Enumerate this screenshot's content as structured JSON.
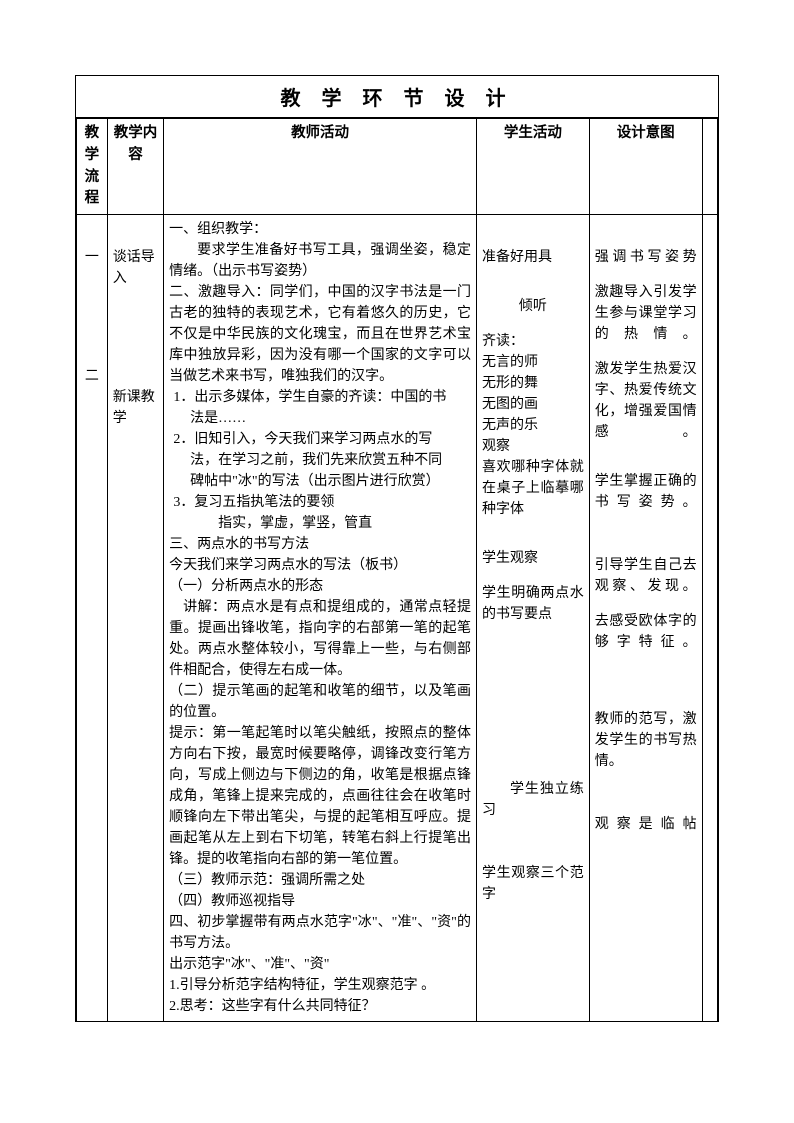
{
  "title": "教 学 环 节 设 计",
  "headers": {
    "flow": "教学流程",
    "content": "教学内容",
    "teacher": "教师活动",
    "student": "学生活动",
    "intent": "设计意图"
  },
  "rows": {
    "flow1": "一",
    "flow2": "二",
    "content1": "谈话导入",
    "content2": "新课教学",
    "teacher": {
      "t1": "一、组织教学：",
      "t2": "要求学生准备好书写工具，强调坐姿，稳定情绪。（出示书写姿势）",
      "t3": "二、激趣导入：同学们，中国的汉字书法是一门古老的独特的表现艺术，它有着悠久的历史，它不仅是中华民族的文化瑰宝，而且在世界艺术宝库中独放异彩，因为没有哪一个国家的文字可以当做艺术来书写，唯独我们的汉字。",
      "t4_a": "1．出示多媒体，学生自豪的齐读：中国的书",
      "t4_b": "法是……",
      "t5_a": "2．旧知引入，今天我们来学习两点水的写",
      "t5_b": "法，在学习之前，我们先来欣赏五种不同",
      "t5_c": "碑帖中\"冰\"的写法（出示图片进行欣赏）",
      "t6": "3．复习五指执笔法的要领",
      "t7": "指实，掌虚，掌竖，管直",
      "t8": "三、两点水的书写方法",
      "t9": "今天我们来学习两点水的写法（板书）",
      "t10": "（一）分析两点水的形态",
      "t11": "讲解：两点水是有点和提组成的，通常点轻提重。提画出锋收笔，指向字的右部第一笔的起笔处。两点水整体较小，写得靠上一些，与右侧部件相配合，使得左右成一体。",
      "t12": "（二）提示笔画的起笔和收笔的细节，以及笔画的位置。",
      "t13": "提示：第一笔起笔时以笔尖触纸，按照点的整体方向右下按，最宽时候要略停，调锋改变行笔方向，写成上侧边与下侧边的角，收笔是根据点锋成角，笔锋上提来完成的，点画往往会在收笔时顺锋向左下带出笔尖，与提的起笔相互呼应。提画起笔从左上到右下切笔，转笔右斜上行提笔出锋。提的收笔指向右部的第一笔位置。",
      "t14": "（三）教师示范：强调所需之处",
      "t15": "（四）教师巡视指导",
      "t16": "四、初步掌握带有两点水范字\"冰\"、\"准\"、\"资\"的书写方法。",
      "t17": "出示范字\"冰\"、\"准\"、\"资\"",
      "t18": "1.引导分析范字结构特征，学生观察范字 。",
      "t19": "2.思考：这些字有什么共同特征？"
    },
    "student": {
      "s1": "准备好用具",
      "s2": "倾听",
      "s3": "齐读：",
      "s4": "无言的师",
      "s5": "无形的舞",
      "s6": "无图的画",
      "s7": "无声的乐",
      "s8": "观察",
      "s9": "喜欢哪种字体就在桌子上临摹哪种字体",
      "s10": "学生观察",
      "s11": "学生明确两点水的书写要点",
      "s12": "学生独立练习",
      "s13": "学生观察三个范字"
    },
    "intent": {
      "i1": "强调书写姿势",
      "i2": "激趣导入引发学生参与课堂学习的热情。",
      "i3": "激发学生热爱汉字、热爱传统文化，增强爱国情感。",
      "i4": "学生掌握正确的书写姿势。",
      "i5": "引导学生自己去观察、发现。",
      "i6": "去感受欧体字的够字特征。",
      "i7": "教师的范写，激发学生的书写热情。",
      "i8": "观察是临帖"
    }
  }
}
